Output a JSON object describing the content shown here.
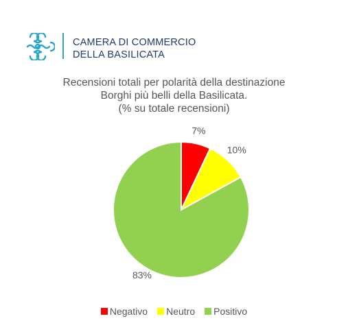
{
  "logo": {
    "line1": "CAMERA DI COMMERCIO",
    "line2": "DELLA BASILICATA",
    "icon": "ornamental-knot-icon",
    "color": "#2aa6c8"
  },
  "chart_data": {
    "type": "pie",
    "title_lines": [
      "Recensioni totali per polarità della destinazione",
      "Borghi più belli della Basilicata.",
      "(% su totale recensioni)"
    ],
    "categories": [
      "Negativo",
      "Neutro",
      "Positivo"
    ],
    "values": [
      7,
      10,
      83
    ],
    "labels": [
      "7%",
      "10%",
      "83%"
    ],
    "colors": [
      "#ff0000",
      "#ffff00",
      "#92d050"
    ],
    "legend_position": "bottom"
  }
}
